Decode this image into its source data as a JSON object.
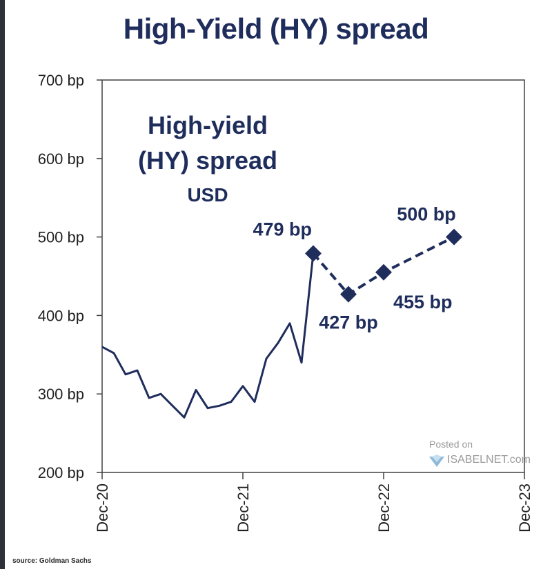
{
  "title": "High-Yield (HY) spread",
  "source": "source: Goldman Sachs",
  "watermark": {
    "line1": "Posted on",
    "line2": "ISABELNET.com"
  },
  "colors": {
    "series": "#1f2d5c",
    "axis": "#404040",
    "text": "#1f2d5c",
    "tick_text": "#222222"
  },
  "chart_data": {
    "type": "line",
    "title": "High-Yield (HY) spread",
    "annotation": [
      "High-yield",
      "(HY) spread",
      "USD"
    ],
    "ylim": [
      200,
      700
    ],
    "yticks": [
      200,
      300,
      400,
      500,
      600,
      700
    ],
    "ytick_labels": [
      "200 bp",
      "300 bp",
      "400 bp",
      "500 bp",
      "600 bp",
      "700 bp"
    ],
    "xlim": [
      "2020-12",
      "2023-12"
    ],
    "xticks": [
      "2020-12",
      "2021-12",
      "2022-12",
      "2023-12"
    ],
    "xtick_labels": [
      "Dec-20",
      "Dec-21",
      "Dec-22",
      "Dec-23"
    ],
    "grid": false,
    "series": [
      {
        "style": "solid",
        "x": [
          "2020-12",
          "2021-01",
          "2021-02",
          "2021-03",
          "2021-04",
          "2021-05",
          "2021-06",
          "2021-07",
          "2021-08",
          "2021-09",
          "2021-10",
          "2021-11",
          "2021-12",
          "2022-01",
          "2022-02",
          "2022-03",
          "2022-04",
          "2022-05",
          "2022-06"
        ],
        "y": [
          360,
          352,
          325,
          330,
          295,
          300,
          285,
          270,
          305,
          282,
          285,
          290,
          310,
          290,
          345,
          365,
          390,
          340,
          479
        ]
      },
      {
        "style": "dashed",
        "markers": "diamond",
        "x": [
          "2022-06",
          "2022-09",
          "2022-12",
          "2023-06"
        ],
        "y": [
          479,
          427,
          455,
          500
        ],
        "labels": [
          "479 bp",
          "427 bp",
          "455 bp",
          "500 bp"
        ]
      }
    ]
  }
}
